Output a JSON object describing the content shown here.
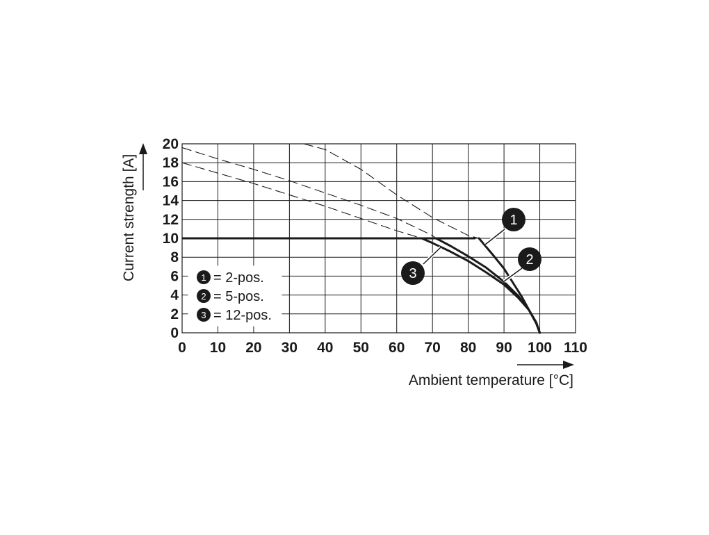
{
  "chart_data": {
    "type": "line",
    "xlabel": "Ambient temperature [°C]",
    "ylabel": "Current strength [A]",
    "xlim": [
      0,
      110
    ],
    "ylim": [
      0,
      20
    ],
    "x_ticks": [
      0,
      10,
      20,
      30,
      40,
      50,
      60,
      70,
      80,
      90,
      100,
      110
    ],
    "y_ticks": [
      0,
      2,
      4,
      6,
      8,
      10,
      12,
      14,
      16,
      18,
      20
    ],
    "grid": true,
    "legend": {
      "placement": "lower-left",
      "entries": [
        {
          "marker": "1",
          "label": "= 2-pos."
        },
        {
          "marker": "2",
          "label": "= 5-pos."
        },
        {
          "marker": "3",
          "label": "= 12-pos."
        }
      ]
    },
    "limit_line": {
      "style": "solid-bold",
      "x": [
        0,
        82
      ],
      "y": [
        10,
        10
      ]
    },
    "series": [
      {
        "marker": "1",
        "dashed": {
          "x": [
            34,
            40,
            50,
            60,
            70,
            80,
            83
          ],
          "y": [
            20,
            19.4,
            17.3,
            14.6,
            12.2,
            10.3,
            10.0
          ]
        },
        "solid": {
          "x": [
            83,
            87,
            90,
            93,
            95,
            97,
            99,
            100
          ],
          "y": [
            10.0,
            8.2,
            6.8,
            5.0,
            3.8,
            2.4,
            1.0,
            0
          ]
        }
      },
      {
        "marker": "2",
        "dashed": {
          "x": [
            0,
            10,
            20,
            30,
            40,
            50,
            60,
            70,
            71
          ],
          "y": [
            19.6,
            18.4,
            17.3,
            16.1,
            14.8,
            13.5,
            12.1,
            10.3,
            10.0
          ]
        },
        "solid": {
          "x": [
            71,
            75,
            80,
            85,
            90,
            94,
            97,
            99,
            100
          ],
          "y": [
            10.0,
            9.2,
            8.1,
            6.9,
            5.4,
            3.9,
            2.4,
            1.1,
            0
          ]
        }
      },
      {
        "marker": "3",
        "dashed": {
          "x": [
            0,
            10,
            20,
            30,
            40,
            50,
            60,
            67
          ],
          "y": [
            18.0,
            16.9,
            15.8,
            14.6,
            13.4,
            12.1,
            10.8,
            10.0
          ]
        },
        "solid": {
          "x": [
            67,
            70,
            75,
            80,
            85,
            90,
            94,
            97,
            99,
            100
          ],
          "y": [
            10.0,
            9.5,
            8.6,
            7.6,
            6.4,
            5.1,
            3.7,
            2.4,
            1.1,
            0
          ]
        }
      }
    ]
  }
}
